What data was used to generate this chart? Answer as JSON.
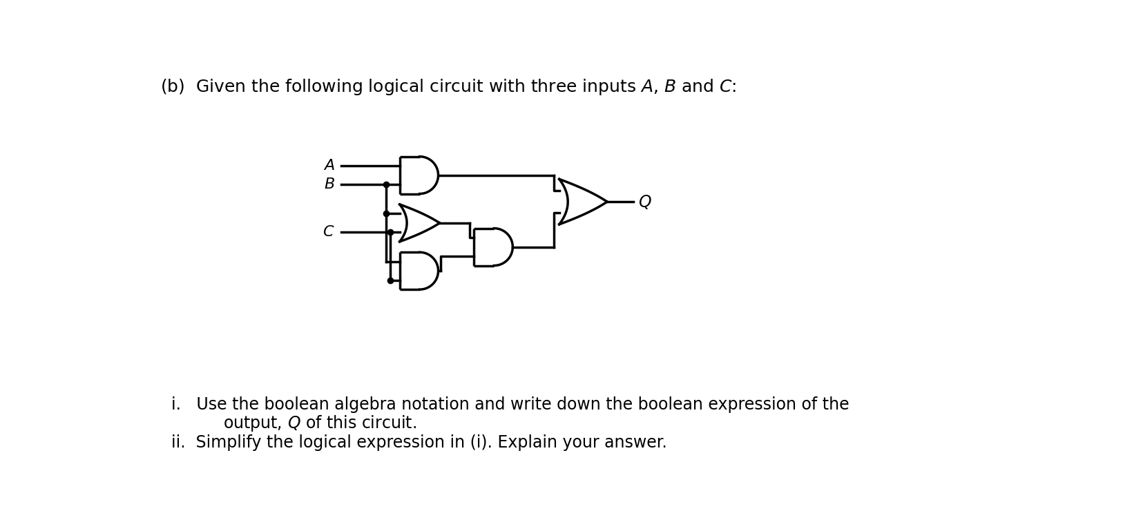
{
  "bg_color": "#ffffff",
  "title_text": "(b)  Given the following logical circuit with three inputs $A$, $B$ and $C$:",
  "title_fontsize": 18,
  "item_i_line1": "i.   Use the boolean algebra notation and write down the boolean expression of the",
  "item_i_line2": "      output, $Q$ of this circuit.",
  "item_ii_text": "ii.  Simplify the logical expression in (i). Explain your answer.",
  "item_fontsize": 17,
  "lw": 2.5,
  "gate_color": "#000000",
  "dot_size": 6
}
